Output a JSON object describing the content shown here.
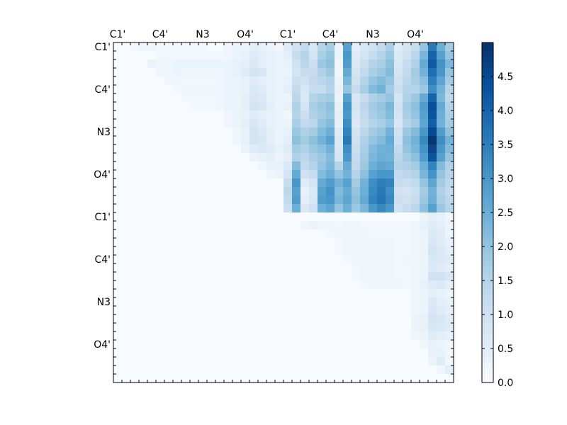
{
  "chart_data": {
    "type": "heatmap",
    "title": "",
    "xlabel": "",
    "ylabel": "",
    "x_tick_labels": [
      "C1'",
      "C4'",
      "N3",
      "O4'",
      "C1'",
      "C4'",
      "N3",
      "O4'"
    ],
    "y_tick_labels": [
      "C1'",
      "C4'",
      "N3",
      "O4'",
      "C1'",
      "C4'",
      "N3",
      "O4'"
    ],
    "colormap": "Blues",
    "colorbar": {
      "min": 0.0,
      "max": 5.0,
      "ticks": [
        0.0,
        0.5,
        1.0,
        1.5,
        2.0,
        2.5,
        3.0,
        3.5,
        4.0,
        4.5
      ],
      "tick_labels": [
        "0.0",
        "0.5",
        "1.0",
        "1.5",
        "2.0",
        "2.5",
        "3.0",
        "3.5",
        "4.0",
        "4.5"
      ]
    },
    "grid": false,
    "n_rows": 40,
    "n_cols": 40,
    "upper_right_block": {
      "row_start": 0,
      "col_start": 20,
      "values": [
        [
          0.6,
          1.0,
          1.3,
          0.8,
          1.5,
          1.8,
          0.3,
          2.8,
          0.5,
          0.8,
          1.0,
          1.3,
          1.7,
          0.6,
          0.9,
          1.2,
          2.0,
          3.6,
          2.5,
          1.8
        ],
        [
          0.5,
          1.2,
          1.5,
          0.9,
          1.7,
          2.0,
          0.3,
          3.0,
          0.6,
          0.9,
          1.2,
          1.5,
          1.9,
          0.7,
          1.0,
          1.4,
          2.3,
          4.0,
          2.8,
          2.0
        ],
        [
          0.4,
          1.0,
          1.4,
          1.1,
          1.9,
          2.1,
          0.2,
          2.9,
          0.7,
          1.1,
          1.5,
          1.7,
          2.1,
          0.8,
          1.2,
          1.6,
          2.6,
          4.2,
          3.1,
          2.3
        ],
        [
          0.3,
          0.9,
          1.2,
          1.2,
          1.6,
          1.9,
          0.2,
          2.6,
          0.9,
          1.3,
          1.7,
          1.9,
          2.2,
          0.9,
          1.3,
          1.8,
          2.4,
          3.8,
          3.0,
          2.0
        ],
        [
          0.4,
          1.1,
          1.0,
          1.3,
          1.4,
          1.6,
          0.3,
          2.3,
          1.0,
          1.5,
          2.0,
          2.2,
          2.0,
          1.0,
          1.4,
          1.7,
          2.1,
          3.5,
          2.7,
          1.8
        ],
        [
          0.5,
          1.3,
          0.8,
          1.2,
          1.2,
          1.5,
          0.4,
          2.0,
          1.2,
          1.7,
          2.2,
          2.4,
          1.8,
          1.1,
          1.5,
          1.5,
          1.9,
          3.2,
          2.4,
          1.5
        ],
        [
          0.3,
          1.4,
          0.7,
          1.5,
          1.7,
          1.8,
          0.3,
          2.8,
          0.8,
          1.2,
          1.6,
          1.8,
          2.0,
          0.9,
          1.6,
          1.9,
          2.6,
          4.0,
          2.3,
          1.4
        ],
        [
          0.4,
          1.6,
          0.9,
          1.7,
          1.9,
          2.1,
          0.4,
          3.1,
          0.9,
          1.4,
          1.8,
          2.0,
          2.3,
          1.0,
          1.8,
          2.1,
          2.9,
          4.4,
          2.6,
          1.6
        ],
        [
          0.2,
          1.5,
          1.1,
          1.6,
          1.8,
          2.0,
          0.5,
          3.0,
          0.8,
          1.3,
          1.7,
          1.9,
          2.2,
          0.9,
          1.7,
          2.0,
          2.8,
          4.3,
          2.5,
          1.7
        ],
        [
          0.3,
          1.7,
          1.3,
          1.4,
          2.0,
          2.2,
          0.4,
          3.2,
          0.7,
          1.2,
          1.5,
          1.7,
          2.0,
          0.8,
          1.5,
          1.8,
          2.7,
          4.1,
          2.4,
          1.8
        ],
        [
          0.4,
          1.9,
          1.6,
          1.8,
          2.2,
          2.5,
          0.6,
          3.4,
          0.9,
          1.4,
          1.8,
          2.0,
          2.4,
          1.0,
          1.9,
          2.2,
          3.0,
          4.5,
          2.9,
          2.1
        ],
        [
          0.5,
          2.1,
          1.8,
          2.1,
          2.4,
          2.8,
          0.7,
          3.6,
          1.0,
          1.6,
          2.0,
          2.2,
          2.6,
          1.1,
          2.1,
          2.4,
          3.3,
          4.9,
          3.2,
          2.4
        ],
        [
          0.6,
          1.8,
          1.6,
          1.9,
          2.1,
          2.4,
          0.8,
          3.2,
          1.1,
          1.7,
          2.2,
          2.4,
          2.5,
          1.3,
          2.0,
          2.3,
          3.1,
          4.6,
          3.0,
          2.2
        ],
        [
          0.5,
          1.6,
          1.4,
          1.7,
          1.9,
          2.2,
          0.9,
          3.0,
          1.2,
          1.8,
          2.3,
          2.5,
          2.4,
          1.4,
          1.8,
          2.1,
          2.9,
          4.3,
          2.8,
          2.0
        ],
        [
          0.7,
          2.2,
          1.3,
          1.5,
          2.0,
          2.3,
          1.5,
          2.6,
          1.3,
          1.9,
          2.5,
          2.7,
          2.6,
          1.5,
          1.6,
          1.8,
          2.5,
          3.4,
          2.2,
          1.6
        ],
        [
          0.9,
          2.6,
          1.0,
          1.2,
          2.2,
          2.5,
          2.0,
          2.4,
          1.5,
          2.1,
          2.8,
          3.0,
          3.0,
          1.3,
          1.4,
          1.5,
          2.3,
          3.1,
          2.0,
          1.5
        ],
        [
          1.2,
          3.0,
          0.6,
          0.9,
          2.6,
          2.9,
          2.4,
          2.8,
          1.8,
          2.4,
          3.2,
          3.5,
          3.4,
          1.2,
          1.1,
          1.3,
          2.0,
          2.7,
          1.8,
          1.4
        ],
        [
          1.4,
          2.8,
          0.4,
          0.7,
          2.8,
          3.1,
          2.2,
          2.6,
          2.0,
          2.5,
          3.3,
          3.6,
          3.2,
          1.0,
          0.9,
          1.1,
          1.8,
          2.4,
          1.6,
          1.3
        ],
        [
          1.3,
          2.9,
          0.5,
          0.8,
          2.9,
          3.0,
          2.3,
          2.7,
          2.1,
          2.6,
          3.4,
          3.7,
          3.3,
          1.1,
          1.0,
          1.2,
          1.9,
          2.5,
          1.7,
          1.4
        ],
        [
          1.1,
          2.5,
          0.7,
          1.0,
          2.5,
          2.7,
          2.0,
          2.5,
          1.9,
          2.3,
          3.0,
          3.3,
          3.0,
          1.0,
          1.2,
          1.4,
          2.1,
          2.8,
          1.9,
          1.5
        ]
      ]
    },
    "lower_right_block": {
      "row_start": 20,
      "col_start": 20,
      "values": [
        [
          0,
          0,
          0,
          0,
          0,
          0,
          0,
          0,
          0,
          0,
          0,
          0,
          0,
          0,
          0,
          0,
          0.3,
          0.5,
          0.4,
          0.2
        ],
        [
          0,
          0,
          0.2,
          0.3,
          0.2,
          0.2,
          0.1,
          0.2,
          0.2,
          0.1,
          0.1,
          0.1,
          0.1,
          0.1,
          0.1,
          0.2,
          0.4,
          0.6,
          0.5,
          0.3
        ],
        [
          0,
          0,
          0,
          0,
          0,
          0.1,
          0.2,
          0.2,
          0.2,
          0.2,
          0.1,
          0.1,
          0.1,
          0.1,
          0.1,
          0.2,
          0.3,
          0.7,
          0.6,
          0.3
        ],
        [
          0,
          0,
          0,
          0,
          0,
          0,
          0.1,
          0.2,
          0.2,
          0.2,
          0.2,
          0.2,
          0.2,
          0.1,
          0.1,
          0.2,
          0.3,
          0.8,
          0.6,
          0.4
        ],
        [
          0,
          0,
          0,
          0,
          0,
          0,
          0.1,
          0.2,
          0.2,
          0.2,
          0.2,
          0.2,
          0.2,
          0.1,
          0.1,
          0.2,
          0.3,
          0.9,
          0.7,
          0.5
        ],
        [
          0,
          0,
          0,
          0,
          0,
          0,
          0,
          0.1,
          0.2,
          0.2,
          0.2,
          0.2,
          0.2,
          0.1,
          0.2,
          0.2,
          0.3,
          0.8,
          0.7,
          0.6
        ],
        [
          0,
          0,
          0,
          0,
          0,
          0,
          0,
          0,
          0.1,
          0.2,
          0.2,
          0.2,
          0.2,
          0.1,
          0.1,
          0.2,
          0.3,
          0.7,
          0.6,
          0.5
        ],
        [
          0,
          0,
          0,
          0,
          0,
          0,
          0,
          0,
          0.1,
          0.2,
          0.2,
          0.2,
          0.2,
          0.1,
          0.1,
          0.2,
          0.3,
          1.0,
          1.0,
          0.8
        ],
        [
          0,
          0,
          0,
          0,
          0,
          0,
          0,
          0,
          0,
          0.1,
          0.2,
          0.2,
          0.2,
          0.2,
          0.1,
          0.2,
          0.4,
          0.6,
          0.7,
          0.5
        ],
        [
          0,
          0,
          0,
          0,
          0,
          0,
          0,
          0,
          0,
          0,
          0,
          0,
          0,
          0,
          0,
          0.2,
          0.3,
          0.5,
          0.4,
          0.3
        ],
        [
          0,
          0,
          0,
          0,
          0,
          0,
          0,
          0,
          0,
          0,
          0,
          0,
          0,
          0,
          0,
          0.2,
          0.3,
          0.7,
          0.5,
          0.4
        ],
        [
          0,
          0,
          0,
          0,
          0,
          0,
          0,
          0,
          0,
          0,
          0,
          0,
          0,
          0,
          0,
          0.2,
          0.3,
          0.8,
          0.6,
          0.5
        ],
        [
          0,
          0,
          0,
          0,
          0,
          0,
          0,
          0,
          0,
          0,
          0,
          0,
          0,
          0,
          0,
          0.3,
          0.4,
          0.9,
          0.8,
          0.6
        ],
        [
          0,
          0,
          0,
          0,
          0,
          0,
          0,
          0,
          0,
          0,
          0,
          0,
          0,
          0,
          0,
          0.3,
          0.4,
          0.8,
          0.7,
          0.6
        ],
        [
          0,
          0,
          0,
          0,
          0,
          0,
          0,
          0,
          0,
          0,
          0,
          0,
          0,
          0,
          0,
          0.2,
          0.3,
          0.6,
          0.5,
          0.4
        ],
        [
          0,
          0,
          0,
          0,
          0,
          0,
          0,
          0,
          0,
          0,
          0,
          0,
          0,
          0,
          0,
          0,
          0.2,
          0.4,
          0.3,
          0.2
        ],
        [
          0,
          0,
          0,
          0,
          0,
          0,
          0,
          0,
          0,
          0,
          0,
          0,
          0,
          0,
          0,
          0,
          0,
          0.4,
          0.4,
          0.2
        ],
        [
          0,
          0,
          0,
          0,
          0,
          0,
          0,
          0,
          0,
          0,
          0,
          0,
          0,
          0,
          0,
          0,
          0,
          0.3,
          0.6,
          0.2
        ],
        [
          0,
          0,
          0,
          0,
          0,
          0,
          0,
          0,
          0,
          0,
          0,
          0,
          0,
          0,
          0,
          0,
          0,
          0,
          0.2,
          0.5
        ],
        [
          0,
          0,
          0,
          0,
          0,
          0,
          0,
          0,
          0,
          0,
          0,
          0,
          0,
          0,
          0,
          0,
          0,
          0,
          0,
          0
        ]
      ]
    },
    "upper_left_block": {
      "row_start": 0,
      "col_start": 0,
      "values": [
        [
          0,
          0,
          0.1,
          0.2,
          0.2,
          0.1,
          0.1,
          0.1,
          0.1,
          0.1,
          0.1,
          0,
          0,
          0.2,
          0.3,
          0.3,
          0.5,
          0.4,
          0.3,
          0.2
        ],
        [
          0,
          0,
          0,
          0,
          0,
          0.1,
          0.1,
          0.1,
          0.1,
          0.1,
          0.1,
          0.1,
          0.1,
          0.2,
          0.3,
          0.4,
          0.6,
          0.5,
          0.4,
          0.3
        ],
        [
          0,
          0,
          0,
          0,
          0.3,
          0.2,
          0.2,
          0.3,
          0.3,
          0.3,
          0.3,
          0.3,
          0.3,
          0.3,
          0.4,
          0.5,
          0.7,
          0.5,
          0.4,
          0.3
        ],
        [
          0,
          0,
          0,
          0,
          0,
          0.2,
          0.2,
          0.3,
          0.2,
          0.2,
          0.2,
          0.2,
          0.2,
          0.3,
          0.4,
          0.6,
          0.9,
          0.8,
          0.4,
          0.3
        ],
        [
          0,
          0,
          0,
          0,
          0,
          0,
          0.2,
          0.2,
          0.1,
          0.1,
          0.1,
          0.1,
          0.2,
          0.3,
          0.3,
          0.4,
          0.6,
          0.5,
          0.4,
          0.3
        ],
        [
          0,
          0,
          0,
          0,
          0,
          0,
          0,
          0.1,
          0.2,
          0.2,
          0.2,
          0.2,
          0.2,
          0.3,
          0.3,
          0.4,
          0.7,
          0.6,
          0.4,
          0.3
        ],
        [
          0,
          0,
          0,
          0,
          0,
          0,
          0,
          0,
          0.1,
          0.1,
          0.1,
          0.1,
          0.2,
          0.3,
          0.3,
          0.5,
          0.8,
          0.7,
          0.4,
          0.3
        ],
        [
          0,
          0,
          0,
          0,
          0,
          0,
          0,
          0,
          0,
          0.1,
          0.1,
          0.1,
          0.2,
          0.3,
          0.3,
          0.5,
          0.9,
          0.8,
          0.5,
          0.3
        ],
        [
          0,
          0,
          0,
          0,
          0,
          0,
          0,
          0,
          0,
          0,
          0,
          0,
          0,
          0.2,
          0.3,
          0.4,
          0.6,
          0.5,
          0.4,
          0.3
        ],
        [
          0,
          0,
          0,
          0,
          0,
          0,
          0,
          0,
          0,
          0,
          0,
          0,
          0,
          0.2,
          0.3,
          0.5,
          0.8,
          0.6,
          0.4,
          0.3
        ],
        [
          0,
          0,
          0,
          0,
          0,
          0,
          0,
          0,
          0,
          0,
          0,
          0,
          0,
          0,
          0.2,
          0.4,
          0.9,
          0.7,
          0.5,
          0.3
        ],
        [
          0,
          0,
          0,
          0,
          0,
          0,
          0,
          0,
          0,
          0,
          0,
          0,
          0,
          0,
          0.2,
          0.4,
          0.9,
          0.8,
          0.5,
          0.3
        ],
        [
          0,
          0,
          0,
          0,
          0,
          0,
          0,
          0,
          0,
          0,
          0,
          0,
          0,
          0,
          0,
          0.3,
          0.6,
          0.7,
          0.6,
          0.4
        ],
        [
          0,
          0,
          0,
          0,
          0,
          0,
          0,
          0,
          0,
          0,
          0,
          0,
          0,
          0,
          0,
          0,
          0.3,
          0.4,
          0.5,
          0.3
        ],
        [
          0,
          0,
          0,
          0,
          0,
          0,
          0,
          0,
          0,
          0,
          0,
          0,
          0,
          0,
          0,
          0,
          0,
          0.2,
          0.4,
          0.4
        ],
        [
          0,
          0,
          0,
          0,
          0,
          0,
          0,
          0,
          0,
          0,
          0,
          0,
          0,
          0,
          0,
          0,
          0,
          0,
          0.2,
          0.3
        ],
        [
          0,
          0,
          0,
          0,
          0,
          0,
          0,
          0,
          0,
          0,
          0,
          0,
          0,
          0,
          0,
          0,
          0,
          0,
          0,
          0
        ],
        [
          0,
          0,
          0,
          0,
          0,
          0,
          0,
          0,
          0,
          0,
          0,
          0,
          0,
          0,
          0,
          0,
          0,
          0,
          0,
          0
        ],
        [
          0,
          0,
          0,
          0,
          0,
          0,
          0,
          0,
          0,
          0,
          0,
          0,
          0,
          0,
          0,
          0,
          0,
          0,
          0,
          0
        ],
        [
          0,
          0,
          0,
          0,
          0,
          0,
          0,
          0,
          0,
          0,
          0,
          0,
          0,
          0,
          0,
          0,
          0,
          0,
          0,
          0
        ]
      ]
    }
  }
}
